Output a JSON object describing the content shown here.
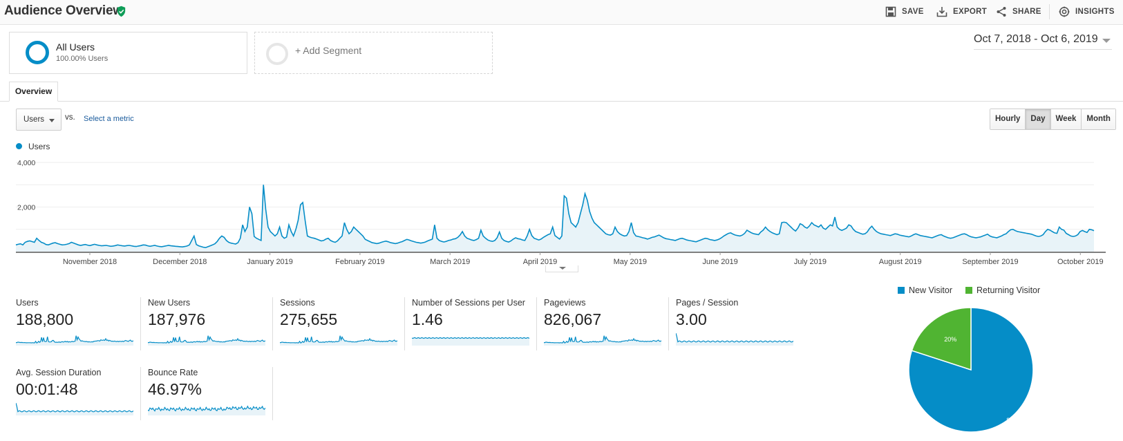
{
  "header": {
    "title": "Audience Overview",
    "actions": [
      {
        "label": "SAVE",
        "icon": "save-icon"
      },
      {
        "label": "EXPORT",
        "icon": "export-icon"
      },
      {
        "label": "SHARE",
        "icon": "share-icon"
      },
      {
        "label": "INSIGHTS",
        "icon": "insights-icon"
      }
    ]
  },
  "segments": {
    "active": {
      "name": "All Users",
      "sub": "100.00% Users"
    },
    "add_label": "+ Add Segment"
  },
  "date_range": "Oct 7, 2018 - Oct 6, 2019",
  "tabs": [
    {
      "label": "Overview",
      "active": true
    }
  ],
  "metric_selector": {
    "selected": "Users",
    "vs": "vs.",
    "select_metric": "Select a metric"
  },
  "granularity": {
    "options": [
      "Hourly",
      "Day",
      "Week",
      "Month"
    ],
    "active": "Day"
  },
  "colors": {
    "primary": "#058dc7",
    "secondary": "#50b432",
    "fill": "#e8f3f8"
  },
  "chart_data": [
    {
      "type": "area",
      "legend": "Users",
      "ylim": [
        0,
        4000
      ],
      "yticks": [
        "4,000",
        "2,000"
      ],
      "x_labels": [
        "November 2018",
        "December 2018",
        "January 2019",
        "February 2019",
        "March 2019",
        "April 2019",
        "May 2019",
        "June 2019",
        "July 2019",
        "August 2019",
        "September 2019",
        "October 2019"
      ],
      "grid": true,
      "series": [
        {
          "name": "Users",
          "values": [
            300,
            330,
            350,
            300,
            420,
            460,
            480,
            450,
            420,
            600,
            500,
            420,
            380,
            320,
            300,
            340,
            380,
            400,
            360,
            330,
            300,
            310,
            330,
            360,
            420,
            380,
            340,
            300,
            280,
            300,
            320,
            290,
            270,
            300,
            330,
            300,
            280,
            260,
            270,
            280,
            260,
            240,
            250,
            270,
            300,
            280,
            260,
            250,
            270,
            280,
            260,
            240,
            230,
            250,
            270,
            300,
            290,
            260,
            240,
            260,
            280,
            250,
            230,
            220,
            240,
            260,
            280,
            260,
            250,
            240,
            230,
            220,
            210,
            230,
            250,
            300,
            500,
            700,
            320,
            260,
            230,
            200,
            180,
            220,
            260,
            300,
            350,
            450,
            600,
            700,
            640,
            500,
            420,
            380,
            360,
            340,
            400,
            600,
            1200,
            900,
            1100,
            2000,
            1700,
            680,
            600,
            550,
            500,
            3000,
            1900,
            1100,
            900,
            800,
            700,
            800,
            1100,
            700,
            600,
            650,
            1200,
            900,
            700,
            1000,
            1400,
            2100,
            2200,
            1400,
            700,
            650,
            620,
            600,
            560,
            520,
            480,
            500,
            560,
            600,
            500,
            450,
            420,
            480,
            600,
            700,
            1300,
            1000,
            800,
            900,
            1100,
            1000,
            900,
            800,
            700,
            550,
            500,
            450,
            400,
            380,
            360,
            380,
            420,
            450,
            470,
            440,
            400,
            380,
            360,
            380,
            420,
            450,
            500,
            550,
            520,
            480,
            450,
            420,
            400,
            380,
            400,
            430,
            480,
            520,
            560,
            1200,
            600,
            500,
            460,
            430,
            460,
            500,
            520,
            560,
            580,
            640,
            740,
            900,
            700,
            600,
            560,
            520,
            500,
            540,
            600,
            960,
            700,
            600,
            520,
            480,
            460,
            500,
            620,
            880,
            600,
            500,
            460,
            430,
            480,
            560,
            620,
            580,
            560,
            520,
            500,
            700,
            1000,
            720,
            600,
            560,
            520,
            560,
            640,
            700,
            760,
            800,
            1100,
            720,
            640,
            560,
            700,
            2500,
            2400,
            1700,
            1300,
            1200,
            1100,
            1300,
            1700,
            2100,
            2600,
            2300,
            1800,
            1500,
            1300,
            1200,
            1100,
            1000,
            900,
            800,
            760,
            740,
            800,
            1100,
            900,
            800,
            740,
            700,
            720,
            900,
            1300,
            850,
            700,
            680,
            650,
            620,
            600,
            560,
            600,
            640,
            660,
            700,
            740,
            680,
            620,
            580,
            560,
            540,
            520,
            500,
            540,
            580,
            600,
            560,
            520,
            500,
            480,
            460,
            440,
            480,
            520,
            560,
            600,
            580,
            540,
            520,
            500,
            520,
            560,
            620,
            700,
            760,
            820,
            840,
            780,
            740,
            720,
            700,
            740,
            820,
            960,
            900,
            840,
            800,
            780,
            760,
            880,
            960,
            1100,
            980,
            900,
            840,
            800,
            760,
            800,
            1300,
            1320,
            1300,
            1200,
            1100,
            1000,
            920,
            1050,
            1250,
            1200,
            1100,
            1050,
            1150,
            1300,
            1200,
            1150,
            1100,
            1200,
            1050,
            1000,
            1100,
            1200,
            1150,
            1550,
            1100,
            1000,
            950,
            1000,
            1050,
            1200,
            1150,
            1000,
            900,
            860,
            820,
            780,
            800,
            880,
            1040,
            1140,
            1000,
            900,
            840,
            800,
            780,
            760,
            740,
            720,
            760,
            800,
            780,
            740,
            720,
            700,
            680,
            660,
            700,
            760,
            800,
            760,
            720,
            700,
            680,
            660,
            640,
            620,
            660,
            700,
            740,
            760,
            700,
            660,
            620,
            600,
            620,
            660,
            700,
            740,
            780,
            800,
            760,
            700,
            660,
            640,
            620,
            640,
            660,
            700,
            740,
            780,
            700,
            660,
            640,
            620,
            660,
            700,
            760,
            800,
            900,
            980,
            1000,
            940,
            900,
            880,
            860,
            840,
            820,
            800,
            780,
            740,
            700,
            680,
            700,
            760,
            900,
            1000,
            960,
            900,
            840,
            820,
            1100,
            1000,
            960,
            820,
            760,
            700,
            680,
            700,
            760,
            900,
            950,
            900,
            860,
            1000,
            980,
            940
          ]
        }
      ]
    },
    {
      "type": "pie",
      "categories": [
        "New Visitor",
        "Returning Visitor"
      ],
      "values": [
        80,
        20
      ],
      "labels": [
        "80%",
        "20%"
      ],
      "colors": [
        "#058dc7",
        "#50b432"
      ]
    }
  ],
  "metrics": [
    {
      "label": "Users",
      "value": "188,800",
      "profile": "spiky"
    },
    {
      "label": "New Users",
      "value": "187,976",
      "profile": "spiky"
    },
    {
      "label": "Sessions",
      "value": "275,655",
      "profile": "spiky"
    },
    {
      "label": "Number of Sessions per User",
      "value": "1.46",
      "profile": "flat"
    },
    {
      "label": "Pageviews",
      "value": "826,067",
      "profile": "spiky"
    },
    {
      "label": "Pages / Session",
      "value": "3.00",
      "profile": "early-spike"
    },
    {
      "label": "Avg. Session Duration",
      "value": "00:01:48",
      "profile": "early-spike"
    },
    {
      "label": "Bounce Rate",
      "value": "46.97%",
      "profile": "noisy"
    }
  ]
}
